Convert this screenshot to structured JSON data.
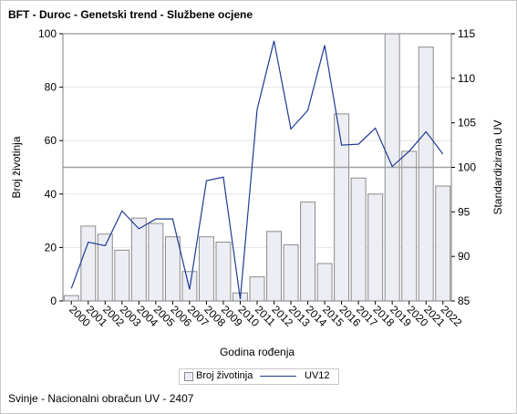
{
  "title": "BFT - Duroc - Genetski trend - Službene ocjene",
  "footnote": "Svinje - Nacionalni obračun UV - 2407",
  "colors": {
    "bar_fill": "#eceef4",
    "bar_stroke": "#8c8c8c",
    "line": "#1f3a93",
    "grid": "#e6e6e6",
    "reference_line": "#a0a0a0"
  },
  "chart_data": {
    "type": "bar",
    "xlabel": "Godina rođenja",
    "ylabel": "Broj životinja",
    "y2label": "Standardizirana UV",
    "categories": [
      "2000",
      "2001",
      "2002",
      "2003",
      "2004",
      "2005",
      "2006",
      "2007",
      "2008",
      "2009",
      "2010",
      "2011",
      "2012",
      "2013",
      "2014",
      "2015",
      "2016",
      "2017",
      "2018",
      "2019",
      "2020",
      "2021",
      "2022"
    ],
    "series": [
      {
        "name": "Broj životinja",
        "type": "bar",
        "axis": "left",
        "values": [
          2,
          28,
          25,
          19,
          31,
          29,
          24,
          11,
          24,
          22,
          3,
          9,
          26,
          21,
          37,
          14,
          70,
          46,
          40,
          100,
          56,
          95,
          43
        ]
      },
      {
        "name": "UV12",
        "type": "line",
        "axis": "right",
        "values": [
          86.4,
          91.6,
          91.2,
          95.1,
          93.1,
          94.2,
          94.2,
          86.3,
          98.5,
          98.9,
          85.2,
          106.5,
          114.2,
          104.3,
          106.4,
          113.7,
          102.5,
          102.6,
          104.4,
          100.1,
          101.8,
          104.0,
          101.5
        ]
      }
    ],
    "ylim": [
      0,
      100
    ],
    "yticks": [
      0,
      20,
      40,
      60,
      80,
      100
    ],
    "y2lim": [
      85,
      115
    ],
    "y2ticks": [
      85,
      90,
      95,
      100,
      105,
      110,
      115
    ],
    "reference_line_y2": 100,
    "grid": true,
    "legend_position": "bottom-center"
  }
}
